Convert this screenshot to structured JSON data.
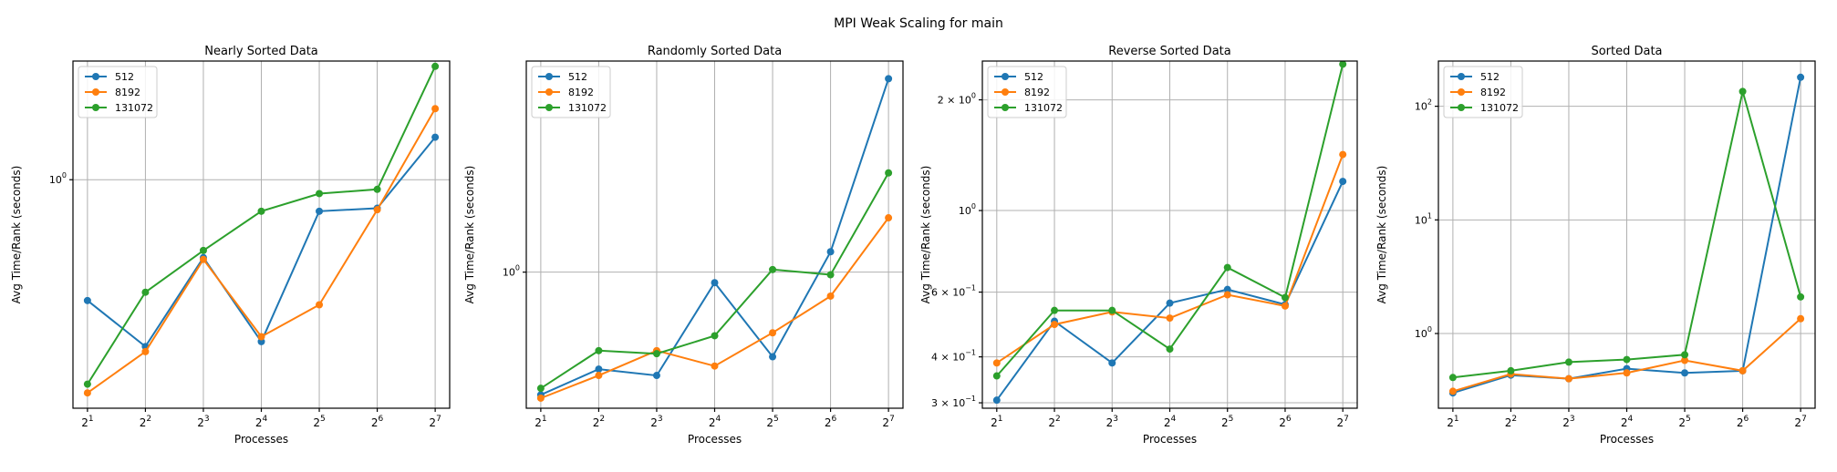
{
  "suptitle": "MPI Weak Scaling for main",
  "chart_data": [
    {
      "type": "line",
      "title": "Nearly Sorted Data",
      "xlabel": "Processes",
      "ylabel": "Avg Time/Rank (seconds)",
      "yscale": "log",
      "ylim": [
        0.43,
        1.55
      ],
      "x": [
        2,
        4,
        8,
        16,
        32,
        64,
        128
      ],
      "xtick_labels": [
        [
          "2",
          "1"
        ],
        [
          "2",
          "2"
        ],
        [
          "2",
          "3"
        ],
        [
          "2",
          "4"
        ],
        [
          "2",
          "5"
        ],
        [
          "2",
          "6"
        ],
        [
          "2",
          "7"
        ]
      ],
      "yticks": [
        {
          "value": 1.0,
          "base": "10",
          "exp": "0"
        }
      ],
      "grid": true,
      "legend_loc": "upper left",
      "series": [
        {
          "name": "512",
          "color": "#1f77b4",
          "values": [
            0.64,
            0.54,
            0.75,
            0.55,
            0.89,
            0.9,
            1.17
          ]
        },
        {
          "name": "8192",
          "color": "#ff7f0e",
          "values": [
            0.455,
            0.53,
            0.745,
            0.56,
            0.63,
            0.895,
            1.3
          ]
        },
        {
          "name": "131072",
          "color": "#2ca02c",
          "values": [
            0.47,
            0.66,
            0.77,
            0.89,
            0.95,
            0.965,
            1.52
          ]
        }
      ]
    },
    {
      "type": "line",
      "title": "Randomly Sorted Data",
      "xlabel": "Processes",
      "ylabel": "Avg Time/Rank (seconds)",
      "yscale": "log",
      "ylim": [
        0.77,
        1.5
      ],
      "x": [
        2,
        4,
        8,
        16,
        32,
        64,
        128
      ],
      "xtick_labels": [
        [
          "2",
          "1"
        ],
        [
          "2",
          "2"
        ],
        [
          "2",
          "3"
        ],
        [
          "2",
          "4"
        ],
        [
          "2",
          "5"
        ],
        [
          "2",
          "6"
        ],
        [
          "2",
          "7"
        ]
      ],
      "yticks": [
        {
          "value": 1.0,
          "base": "10",
          "exp": "0"
        }
      ],
      "grid": true,
      "legend_loc": "upper left",
      "series": [
        {
          "name": "512",
          "color": "#1f77b4",
          "values": [
            0.79,
            0.83,
            0.82,
            0.98,
            0.85,
            1.04,
            1.45
          ]
        },
        {
          "name": "8192",
          "color": "#ff7f0e",
          "values": [
            0.785,
            0.82,
            0.86,
            0.835,
            0.89,
            0.955,
            1.11
          ]
        },
        {
          "name": "131072",
          "color": "#2ca02c",
          "values": [
            0.8,
            0.86,
            0.855,
            0.885,
            1.005,
            0.995,
            1.21
          ]
        }
      ]
    },
    {
      "type": "line",
      "title": "Reverse Sorted Data",
      "xlabel": "Processes",
      "ylabel": "Avg Time/Rank (seconds)",
      "yscale": "log",
      "ylim": [
        0.29,
        2.55
      ],
      "x": [
        2,
        4,
        8,
        16,
        32,
        64,
        128
      ],
      "xtick_labels": [
        [
          "2",
          "1"
        ],
        [
          "2",
          "2"
        ],
        [
          "2",
          "3"
        ],
        [
          "2",
          "4"
        ],
        [
          "2",
          "5"
        ],
        [
          "2",
          "6"
        ],
        [
          "2",
          "7"
        ]
      ],
      "yticks": [
        {
          "value": 0.3,
          "mant": "3",
          "base": "10",
          "exp": "−1"
        },
        {
          "value": 0.4,
          "mant": "4",
          "base": "10",
          "exp": "−1"
        },
        {
          "value": 0.6,
          "mant": "6",
          "base": "10",
          "exp": "−1"
        },
        {
          "value": 1.0,
          "base": "10",
          "exp": "0"
        },
        {
          "value": 2.0,
          "mant": "2",
          "base": "10",
          "exp": "0"
        }
      ],
      "grid": true,
      "legend_loc": "upper left",
      "series": [
        {
          "name": "512",
          "color": "#1f77b4",
          "values": [
            0.305,
            0.5,
            0.385,
            0.56,
            0.61,
            0.555,
            1.2
          ]
        },
        {
          "name": "8192",
          "color": "#ff7f0e",
          "values": [
            0.385,
            0.49,
            0.53,
            0.51,
            0.59,
            0.55,
            1.42
          ]
        },
        {
          "name": "131072",
          "color": "#2ca02c",
          "values": [
            0.355,
            0.535,
            0.535,
            0.42,
            0.7,
            0.58,
            2.5
          ]
        }
      ]
    },
    {
      "type": "line",
      "title": "Sorted Data",
      "xlabel": "Processes",
      "ylabel": "Avg Time/Rank (seconds)",
      "yscale": "log",
      "ylim": [
        0.22,
        250
      ],
      "x": [
        2,
        4,
        8,
        16,
        32,
        64,
        128
      ],
      "xtick_labels": [
        [
          "2",
          "1"
        ],
        [
          "2",
          "2"
        ],
        [
          "2",
          "3"
        ],
        [
          "2",
          "4"
        ],
        [
          "2",
          "5"
        ],
        [
          "2",
          "6"
        ],
        [
          "2",
          "7"
        ]
      ],
      "yticks": [
        {
          "value": 1,
          "base": "10",
          "exp": "0"
        },
        {
          "value": 10,
          "base": "10",
          "exp": "1"
        },
        {
          "value": 100,
          "base": "10",
          "exp": "2"
        }
      ],
      "grid": true,
      "legend_loc": "upper left",
      "series": [
        {
          "name": "512",
          "color": "#1f77b4",
          "values": [
            0.3,
            0.43,
            0.4,
            0.49,
            0.45,
            0.47,
            180
          ]
        },
        {
          "name": "8192",
          "color": "#ff7f0e",
          "values": [
            0.31,
            0.44,
            0.4,
            0.45,
            0.58,
            0.47,
            1.35
          ]
        },
        {
          "name": "131072",
          "color": "#2ca02c",
          "values": [
            0.41,
            0.47,
            0.56,
            0.59,
            0.65,
            135,
            2.1
          ]
        }
      ]
    }
  ]
}
